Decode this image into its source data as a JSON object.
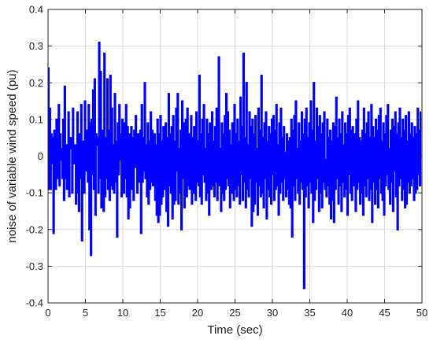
{
  "chart_data": {
    "type": "line",
    "title": "",
    "xlabel": "Time (sec)",
    "ylabel": "noise of variable wind speed (pu)",
    "xlim": [
      0,
      50
    ],
    "ylim": [
      -0.4,
      0.4
    ],
    "x_ticks": [
      "0",
      "5",
      "10",
      "15",
      "20",
      "25",
      "30",
      "35",
      "40",
      "45",
      "50"
    ],
    "y_ticks": [
      "0.4",
      "0.3",
      "0.2",
      "0.1",
      "0",
      "-0.1",
      "-0.2",
      "-0.3",
      "-0.4"
    ],
    "grid": true,
    "step_style": "zero-order hold",
    "series": [
      {
        "color": "#0000ff",
        "sample_time": 0.1,
        "x_start": 0,
        "values": [
          0.24,
          -0.09,
          0.13,
          -0.09,
          0.06,
          -0.02,
          0.05,
          -0.21,
          0.07,
          0.02,
          -0.09,
          0.1,
          -0.06,
          0.03,
          0.14,
          -0.08,
          0.06,
          0.02,
          -0.01,
          -0.06,
          0.1,
          -0.12,
          0.19,
          -0.06,
          0.03,
          -0.09,
          -0.03,
          0.12,
          -0.11,
          0.02,
          0.05,
          0.04,
          -0.1,
          0.13,
          0.01,
          -0.02,
          0.03,
          -0.13,
          -0.01,
          0.12,
          -0.1,
          -0.15,
          0.06,
          -0.06,
          0.14,
          -0.23,
          -0.04,
          0.04,
          -0.1,
          0.15,
          0.07,
          -0.04,
          0.07,
          -0.07,
          0.14,
          -0.2,
          0.09,
          -0.27,
          0.1,
          -0.05,
          0.18,
          -0.09,
          0.21,
          -0.16,
          0.06,
          0.03,
          0.05,
          -0.1,
          0.31,
          -0.06,
          0.23,
          -0.14,
          0.07,
          0.04,
          -0.15,
          0.28,
          -0.11,
          0.05,
          -0.06,
          0.21,
          -0.09,
          0.07,
          -0.12,
          0.22,
          -0.08,
          0.13,
          -0.09,
          0.03,
          -0.1,
          0.17,
          -0.07,
          0.04,
          -0.22,
          0.09,
          -0.05,
          0.14,
          -0.01,
          0.06,
          -0.11,
          0.1,
          0.03,
          -0.1,
          0.09,
          -0.06,
          0.14,
          -0.11,
          0.08,
          -0.17,
          0.06,
          -0.14,
          0.02,
          0.08,
          -0.09,
          0.05,
          -0.12,
          0.07,
          -0.03,
          0.11,
          0.01,
          -0.1,
          0.06,
          -0.07,
          -0.02,
          0.07,
          -0.21,
          0.14,
          -0.07,
          0.05,
          -0.04,
          0.2,
          -0.06,
          0.03,
          -0.11,
          0.09,
          -0.13,
          0.04,
          -0.09,
          0.12,
          -0.07,
          0.07,
          -0.08,
          0.02,
          0.06,
          -0.12,
          0.03,
          -0.16,
          0.1,
          -0.18,
          0.06,
          -0.16,
          0.11,
          -0.13,
          0.04,
          -0.11,
          0.08,
          -0.09,
          0.03,
          0.09,
          -0.15,
          0.05,
          -0.19,
          0.17,
          -0.08,
          0.06,
          -0.1,
          0.08,
          -0.17,
          0.11,
          -0.13,
          0.04,
          -0.12,
          0.13,
          -0.04,
          0.17,
          -0.13,
          0.02,
          -0.1,
          0.07,
          -0.2,
          0.15,
          -0.06,
          0.09,
          -0.14,
          0.03,
          0.1,
          -0.11,
          0.13,
          -0.08,
          0.06,
          -0.09,
          0.04,
          0.11,
          -0.13,
          0.05,
          -0.1,
          0.08,
          0.03,
          -0.12,
          0.12,
          -0.07,
          0.04,
          -0.08,
          0.22,
          -0.11,
          0.06,
          -0.13,
          0.1,
          -0.05,
          0.14,
          -0.07,
          0.02,
          -0.12,
          0.1,
          -0.1,
          0.06,
          -0.16,
          0.09,
          0.03,
          -0.09,
          0.12,
          -0.08,
          0.04,
          -0.11,
          0.08,
          -0.07,
          0.13,
          -0.12,
          0.05,
          0.27,
          -0.08,
          0.02,
          -0.15,
          0.09,
          -0.1,
          0.06,
          -0.12,
          0.11,
          -0.09,
          0.17,
          -0.06,
          0.12,
          -0.08,
          0.07,
          -0.14,
          0.03,
          -0.1,
          0.09,
          0.05,
          -0.12,
          0.14,
          -0.09,
          0.06,
          -0.11,
          0.1,
          -0.08,
          0.04,
          -0.13,
          0.16,
          -0.05,
          0.08,
          -0.12,
          0.28,
          -0.07,
          0.05,
          -0.14,
          0.2,
          -0.09,
          0.03,
          -0.11,
          0.12,
          -0.06,
          0.08,
          -0.19,
          0.1,
          -0.15,
          0.06,
          -0.13,
          0.11,
          -0.07,
          0.02,
          -0.16,
          0.13,
          -0.08,
          0.07,
          -0.11,
          0.22,
          -0.1,
          0.05,
          -0.14,
          0.09,
          -0.06,
          0.12,
          -0.17,
          0.04,
          -0.09,
          0.08,
          -0.11,
          0.06,
          -0.13,
          0.1,
          -0.05,
          0.11,
          -0.12,
          0.07,
          -0.09,
          0.14,
          -0.08,
          0.03,
          -0.16,
          0.09,
          -0.1,
          0.13,
          -0.07,
          0.05,
          -0.12,
          0.08,
          -0.06,
          0.01,
          -0.11,
          0.06,
          -0.09,
          0.04,
          -0.13,
          0.05,
          -0.14,
          0.1,
          -0.22,
          0.07,
          -0.08,
          0.11,
          -0.12,
          0.15,
          -0.06,
          0.02,
          -0.1,
          0.09,
          -0.13,
          0.04,
          -0.07,
          0.12,
          -0.09,
          0.06,
          -0.36,
          0.1,
          -0.11,
          0.13,
          -0.08,
          0.05,
          -0.14,
          0.09,
          -0.07,
          0.15,
          -0.1,
          0.07,
          -0.18,
          0.2,
          -0.12,
          0.04,
          -0.09,
          0.13,
          -0.06,
          0.08,
          -0.15,
          0.11,
          -0.1,
          0.06,
          -0.14,
          0.09,
          -0.07,
          0.12,
          -0.09,
          -0.01,
          -0.11,
          0.1,
          -0.08,
          0.05,
          -0.13,
          0.07,
          -0.17,
          0.04,
          -0.12,
          0.09,
          -0.18,
          0.08,
          -0.09,
          0.16,
          -0.06,
          0.05,
          -0.13,
          0.1,
          -0.08,
          0.06,
          -0.15,
          0.12,
          -0.07,
          0.03,
          -0.11,
          0.09,
          -0.09,
          0.06,
          -0.16,
          0.11,
          -0.05,
          0.13,
          -0.1,
          0.07,
          -0.12,
          0.08,
          -0.04,
          -0.08,
          0.06,
          -0.15,
          0.1,
          -0.09,
          0.15,
          -0.07,
          0.05,
          -0.13,
          0.04,
          -0.1,
          0.07,
          -0.16,
          0.13,
          -0.08,
          0.06,
          -0.11,
          0.09,
          -0.06,
          0.12,
          -0.12,
          0.05,
          -0.09,
          0.14,
          -0.18,
          0.08,
          -0.07,
          0.05,
          -0.13,
          0.1,
          -0.09,
          0.07,
          -0.14,
          0.11,
          -0.06,
          0.13,
          -0.1,
          0.04,
          -0.12,
          0.09,
          -0.16,
          0.06,
          -0.08,
          0.11,
          -0.05,
          0.14,
          -0.09,
          0.02,
          -0.13,
          0.07,
          -0.07,
          0.1,
          -0.15,
          0.08,
          -0.04,
          0.12,
          -0.11,
          0.06,
          -0.2,
          0.09,
          -0.08,
          0.13,
          -0.06,
          0.05,
          -0.12,
          0.1,
          -0.09,
          0.07,
          -0.14,
          0.11,
          -0.13,
          0.04,
          -0.07,
          0.12,
          -0.1,
          0.06,
          -0.08,
          0.09,
          -0.06,
          0.05,
          -0.12,
          0.08,
          -0.1,
          0.06,
          -0.09,
          0.13,
          -0.05,
          0.07,
          -0.08,
          0.12
        ]
      }
    ]
  }
}
